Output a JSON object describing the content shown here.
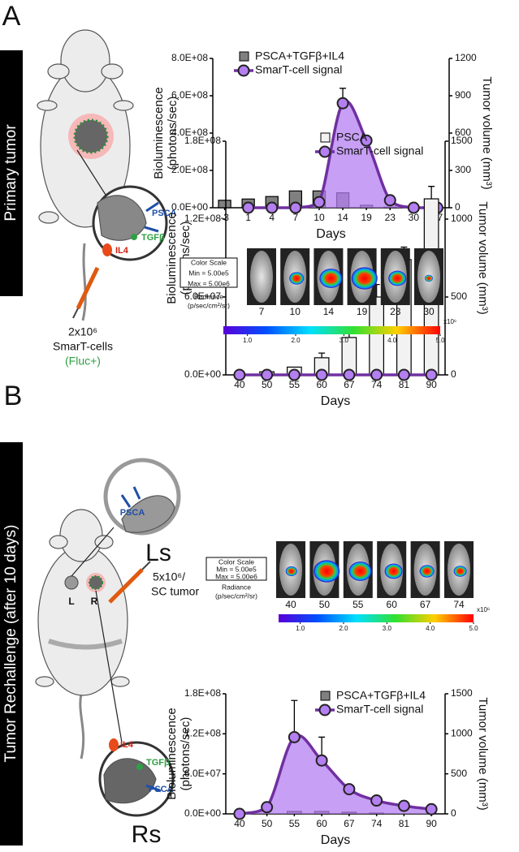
{
  "chart_data": [
    {
      "type": "combo",
      "categories": [
        "-3",
        "1",
        "4",
        "7",
        "10",
        "14",
        "19",
        "23",
        "30",
        "37"
      ],
      "xlabel": "Days",
      "ylabel": [
        "Bioluminescence",
        "(photons/sec)"
      ],
      "y2label": "Tumor volume (mm³)",
      "ylim": [
        0,
        800000000
      ],
      "yticks": [
        {
          "value": 0,
          "label": "0.0E+00"
        },
        {
          "value": 200000000,
          "label": "2.0E+08"
        },
        {
          "value": 400000000,
          "label": "4.0E+08"
        },
        {
          "value": 600000000,
          "label": "6.0E+08"
        },
        {
          "value": 800000000,
          "label": "8.0E+08"
        }
      ],
      "y2lim": [
        0,
        1200
      ],
      "y2ticks": [
        0,
        300,
        600,
        900,
        1200
      ],
      "series": [
        {
          "name": "PSCA+TGFβ+IL4",
          "type": "bar",
          "axis": "y2",
          "color": "#808080",
          "values": [
            60,
            70,
            90,
            135,
            135,
            120,
            20,
            5,
            0,
            0
          ]
        },
        {
          "name": "SmarT-cell signal",
          "type": "line",
          "color": "#7030a0",
          "fill": "#b47ff0",
          "values": [
            null,
            0,
            0,
            0,
            30000000,
            560000000,
            360000000,
            40000000,
            0,
            0
          ],
          "errors": [
            null,
            null,
            null,
            null,
            null,
            80000000,
            null,
            null,
            null,
            null
          ]
        }
      ]
    },
    {
      "type": "combo",
      "categories": [
        "40",
        "50",
        "55",
        "60",
        "67",
        "74",
        "81",
        "90"
      ],
      "xlabel": "Days",
      "ylabel": [
        "Bioluminescence",
        "(photons/sec)"
      ],
      "y2label": "Tumor volume (mm³)",
      "ylim": [
        0,
        180000000
      ],
      "yticks": [
        {
          "value": 0,
          "label": "0.0E+00"
        },
        {
          "value": 60000000,
          "label": "6.0E+07"
        },
        {
          "value": 120000000,
          "label": "1.2E+08"
        },
        {
          "value": 180000000,
          "label": "1.8E+08"
        }
      ],
      "y2lim": [
        0,
        1500
      ],
      "y2ticks": [
        0,
        500,
        1000,
        1500
      ],
      "series": [
        {
          "name": "PSCA",
          "type": "bar",
          "axis": "y2",
          "color": "#f2f2f2",
          "values": [
            0,
            20,
            50,
            110,
            240,
            500,
            740,
            1130
          ],
          "errors": [
            null,
            null,
            null,
            30,
            60,
            80,
            80,
            80
          ]
        },
        {
          "name": "SmarT-cell signal",
          "type": "line",
          "color": "#7030a0",
          "fill": "#b47ff0",
          "values": [
            0,
            0,
            0,
            0,
            0,
            0,
            0,
            0
          ]
        }
      ]
    },
    {
      "type": "combo",
      "categories": [
        "40",
        "50",
        "55",
        "60",
        "67",
        "74",
        "81",
        "90"
      ],
      "xlabel": "Days",
      "ylabel": [
        "Bioluminescence",
        "(photons/sec)"
      ],
      "y2label": "Tumor volume (mm³)",
      "ylim": [
        0,
        180000000
      ],
      "yticks": [
        {
          "value": 0,
          "label": "0.0E+00"
        },
        {
          "value": 60000000,
          "label": "6.0E+07"
        },
        {
          "value": 120000000,
          "label": "1.2E+08"
        },
        {
          "value": 180000000,
          "label": "1.8E+08"
        }
      ],
      "y2lim": [
        0,
        1500
      ],
      "y2ticks": [
        0,
        500,
        1000,
        1500
      ],
      "series": [
        {
          "name": "PSCA+TGFβ+IL4",
          "type": "bar",
          "axis": "y2",
          "color": "#808080",
          "values": [
            0,
            0,
            30,
            30,
            20,
            10,
            0,
            0
          ]
        },
        {
          "name": "SmarT-cell signal",
          "type": "line",
          "color": "#7030a0",
          "fill": "#b47ff0",
          "values": [
            0,
            10000000,
            115000000,
            80000000,
            37000000,
            20000000,
            12000000,
            7000000
          ],
          "errors": [
            null,
            null,
            55000000,
            35000000,
            6000000,
            5000000,
            null,
            null
          ]
        }
      ]
    }
  ],
  "panels": [
    {
      "label": "A",
      "side_title": "Primary tumor",
      "inset_labels": [
        "PSCA",
        "TGFβ",
        "IL4"
      ],
      "injection": [
        "2x10⁶",
        "SmarT-cells",
        "(Fluc+)"
      ]
    },
    {
      "label": "B",
      "side_title": "Tumor Rechallenge (after 10 days)",
      "sides": [
        "L",
        "R"
      ],
      "insets": [
        "Ls",
        "Rs"
      ],
      "top_inset_labels": [
        "PSCA"
      ],
      "bottom_inset_labels": [
        "IL4",
        "TGFβ",
        "PSCA"
      ],
      "injection": [
        "5x10⁶/",
        "SC tumor"
      ]
    }
  ],
  "imaging": [
    {
      "days": [
        7,
        10,
        14,
        19,
        23,
        30
      ],
      "color_scale": [
        "Color Scale",
        "Min = 5.00e5",
        "Max = 5.00e6"
      ],
      "radiance": [
        "Radiance",
        "(p/sec/cm²/sr)"
      ],
      "colorbar_lim": [
        0.5,
        5
      ],
      "colorbar_ticks": [
        {
          "value": 1,
          "label": "1.0"
        },
        {
          "value": 2,
          "label": "2.0"
        },
        {
          "value": 3,
          "label": "3.0"
        },
        {
          "value": 4,
          "label": "4.0"
        },
        {
          "value": 5,
          "label": "5.0"
        }
      ],
      "colorbar_unit": "x10⁶"
    },
    {
      "days": [
        40,
        50,
        55,
        60,
        67,
        74
      ],
      "color_scale": [
        "Color Scale",
        "Min = 5.00e5",
        "Max = 5.00e6"
      ],
      "radiance": [
        "Radiance",
        "(p/sec/cm²/sr)"
      ],
      "colorbar_lim": [
        0.5,
        5
      ],
      "colorbar_ticks": [
        {
          "value": 1,
          "label": "1.0"
        },
        {
          "value": 2,
          "label": "2.0"
        },
        {
          "value": 3,
          "label": "3.0"
        },
        {
          "value": 4,
          "label": "4.0"
        },
        {
          "value": 5,
          "label": "5.0"
        }
      ],
      "colorbar_unit": "x10⁶"
    }
  ]
}
